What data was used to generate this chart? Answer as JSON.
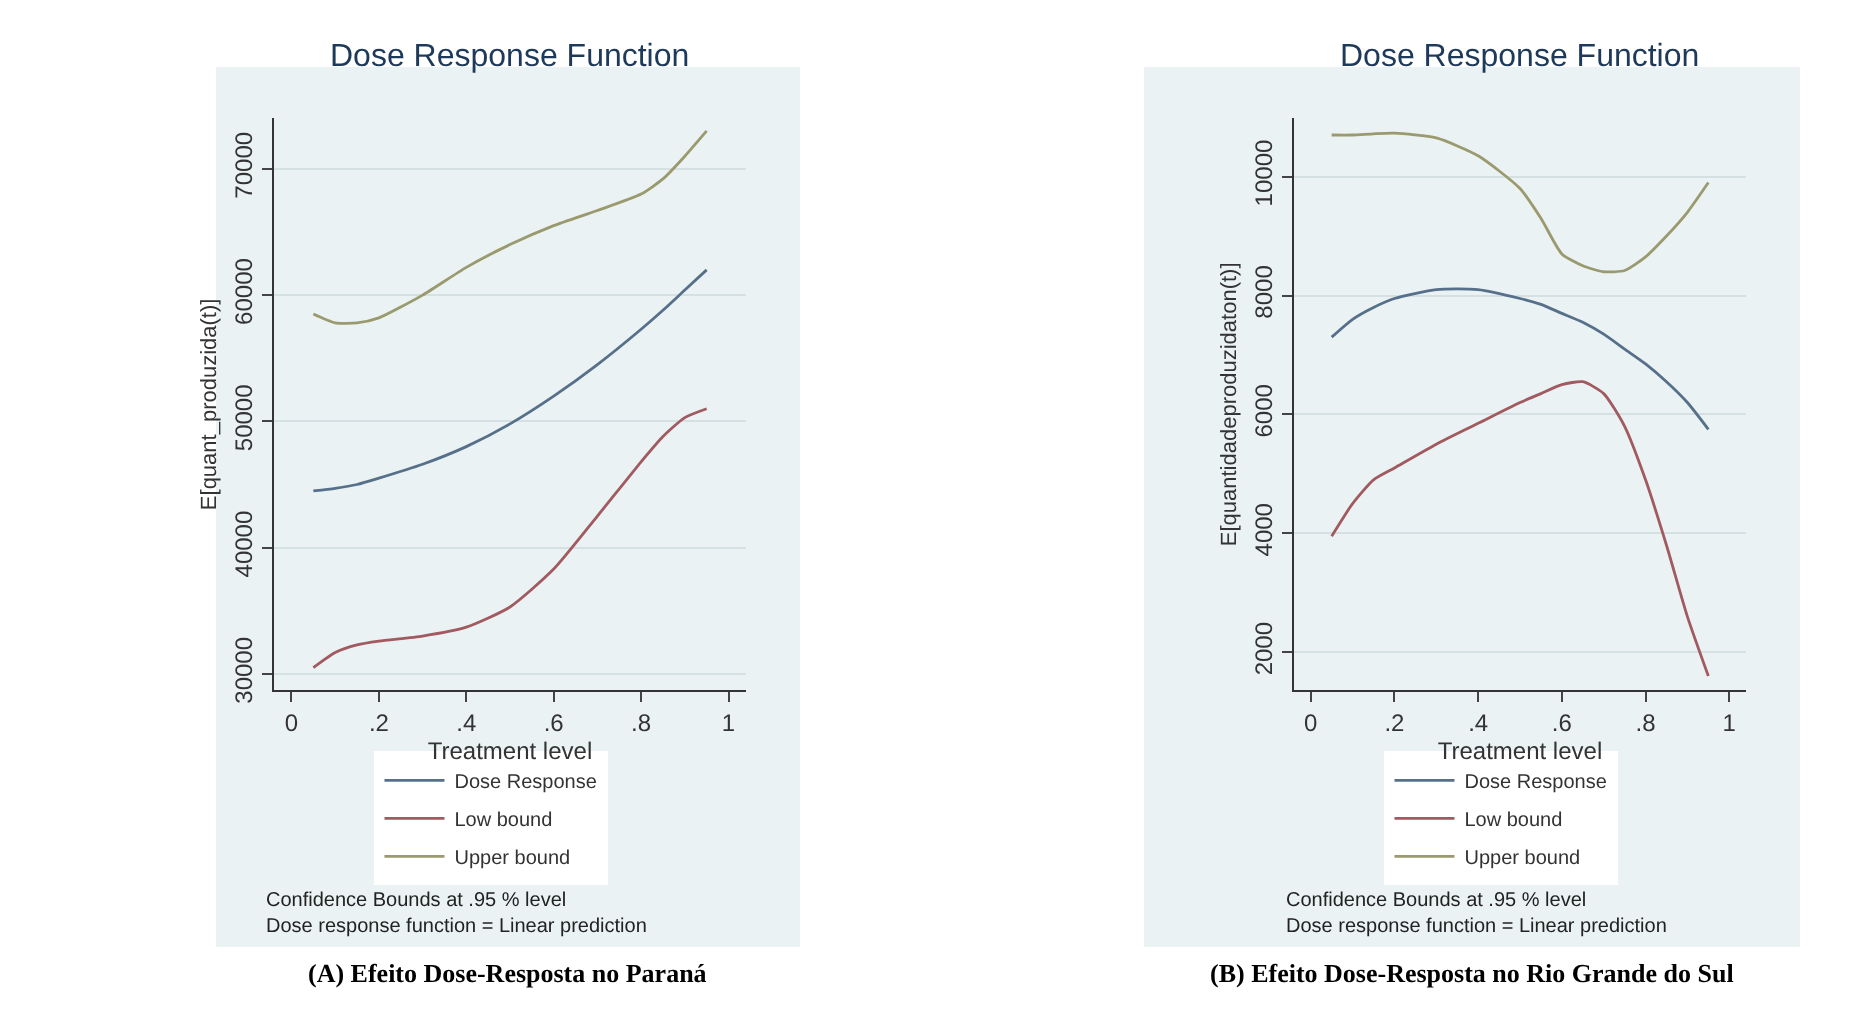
{
  "chart_data": [
    {
      "type": "line",
      "title": "Dose Response Function",
      "xlabel": "Treatment level",
      "ylabel": "E[quant_produzida(t)]",
      "x": [
        0.05,
        0.1,
        0.15,
        0.2,
        0.3,
        0.4,
        0.5,
        0.6,
        0.7,
        0.8,
        0.85,
        0.9,
        0.95
      ],
      "series": [
        {
          "name": "Dose Response",
          "color": "#56708a",
          "values": [
            44500,
            44700,
            45000,
            45500,
            46600,
            48000,
            49800,
            52000,
            54500,
            57300,
            58800,
            60400,
            62000
          ]
        },
        {
          "name": "Low bound",
          "color": "#a05a60",
          "values": [
            30500,
            31700,
            32300,
            32600,
            33000,
            33700,
            35300,
            38300,
            42500,
            46800,
            48800,
            50300,
            51000
          ]
        },
        {
          "name": "Upper bound",
          "color": "#9a9a6e",
          "values": [
            58500,
            57800,
            57800,
            58200,
            60000,
            62200,
            64000,
            65500,
            66700,
            68000,
            69200,
            71000,
            73000
          ]
        }
      ],
      "xlim": [
        -0.04,
        1.04
      ],
      "xticks": [
        0,
        {
          "value": 0.2,
          "label": ".2"
        },
        {
          "value": 0.4,
          "label": ".4"
        },
        {
          "value": 0.6,
          "label": ".6"
        },
        {
          "value": 0.8,
          "label": ".8"
        },
        1
      ],
      "ylim": [
        28700,
        74000
      ],
      "yticks": [
        30000,
        40000,
        50000,
        60000,
        70000
      ],
      "grid": "y",
      "legend": "bottom",
      "annotations": [
        "Confidence Bounds at .95 % level\nDose response function = Linear prediction",
        "(A) Efeito Dose-Resposta no Paraná"
      ]
    },
    {
      "type": "line",
      "title": "Dose Response Function",
      "xlabel": "Treatment level",
      "ylabel": "E[quantidadeproduzidaton(t)]",
      "x": [
        0.05,
        0.1,
        0.15,
        0.2,
        0.3,
        0.4,
        0.5,
        0.55,
        0.6,
        0.65,
        0.7,
        0.75,
        0.8,
        0.85,
        0.9,
        0.95
      ],
      "series": [
        {
          "name": "Dose Response",
          "color": "#56708a",
          "values": [
            7300,
            7600,
            7800,
            7950,
            8100,
            8100,
            7950,
            7850,
            7700,
            7550,
            7350,
            7100,
            6850,
            6550,
            6200,
            5750
          ]
        },
        {
          "name": "Low bound",
          "color": "#a05a60",
          "values": [
            3950,
            4500,
            4900,
            5100,
            5500,
            5850,
            6200,
            6350,
            6500,
            6550,
            6350,
            5800,
            4900,
            3800,
            2600,
            1600
          ]
        },
        {
          "name": "Upper bound",
          "color": "#9a9a6e",
          "values": [
            10700,
            10700,
            10720,
            10730,
            10650,
            10350,
            9800,
            9300,
            8700,
            8500,
            8400,
            8420,
            8650,
            9000,
            9400,
            9900
          ]
        }
      ],
      "xlim": [
        -0.04,
        1.04
      ],
      "xticks": [
        0,
        {
          "value": 0.2,
          "label": ".2"
        },
        {
          "value": 0.4,
          "label": ".4"
        },
        {
          "value": 0.6,
          "label": ".6"
        },
        {
          "value": 0.8,
          "label": ".8"
        },
        1
      ],
      "ylim": [
        1360,
        10980
      ],
      "yticks": [
        2000,
        4000,
        6000,
        8000,
        10000
      ],
      "grid": "y",
      "legend": "bottom",
      "annotations": [
        "Confidence Bounds at .95 % level\nDose response function = Linear prediction",
        "(B) Efeito Dose-Resposta no Rio Grande do Sul"
      ]
    }
  ]
}
